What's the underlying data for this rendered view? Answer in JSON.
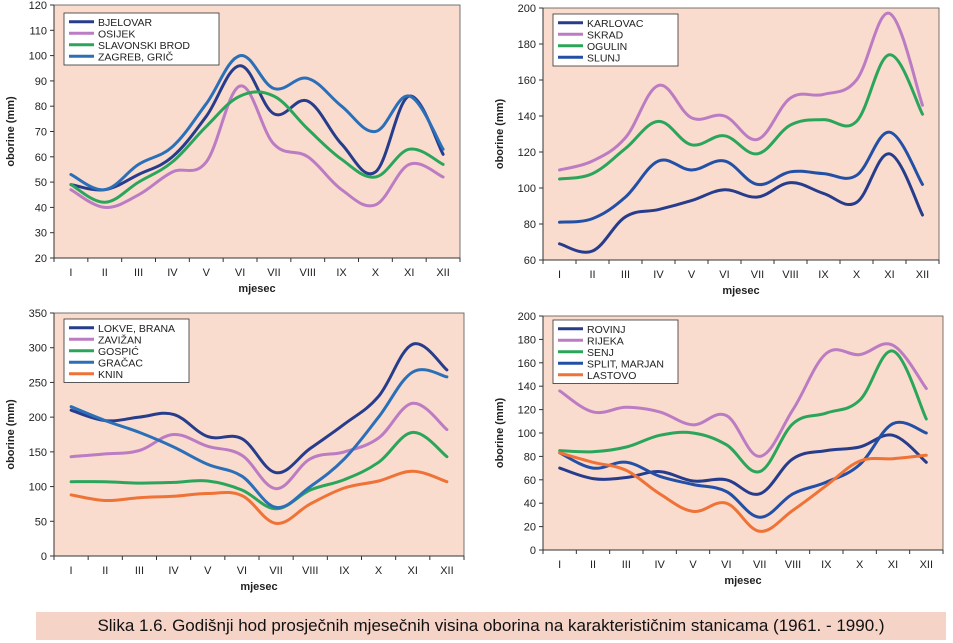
{
  "caption": "Slika 1.6. Godišnji hod prosječnih mjesečnih visina oborina na karakterističnim stanicama (1961. - 1990.)",
  "colors": {
    "plot_bg": "#f9dccd",
    "navy": "#283c8c",
    "violet": "#bb7cc4",
    "green": "#2ca55c",
    "blue": "#2a6fb8",
    "orange": "#ef7236"
  },
  "chart_data": [
    {
      "type": "line",
      "id": "tl",
      "xlabel": "mjesec",
      "ylabel": "oborine (mm)",
      "categories": [
        "I",
        "II",
        "III",
        "IV",
        "V",
        "VI",
        "VII",
        "VIII",
        "IX",
        "X",
        "XI",
        "XII"
      ],
      "ylim": [
        20,
        120
      ],
      "yticks": [
        20,
        30,
        40,
        50,
        60,
        70,
        80,
        90,
        100,
        110,
        120
      ],
      "series": [
        {
          "name": "BJELOVAR",
          "color": "#283c8c",
          "values": [
            49,
            47,
            53,
            60,
            76,
            96,
            77,
            82,
            65,
            54,
            84,
            61
          ]
        },
        {
          "name": "OSIJEK",
          "color": "#bb7cc4",
          "values": [
            47,
            40,
            45,
            54,
            58,
            88,
            65,
            60,
            47,
            41,
            57,
            52
          ]
        },
        {
          "name": "SLAVONSKI BROD",
          "color": "#2ca55c",
          "values": [
            49,
            42,
            50,
            58,
            72,
            84,
            84,
            71,
            59,
            52,
            63,
            57
          ]
        },
        {
          "name": "ZAGREB, GRIČ",
          "color": "#2a6fb8",
          "values": [
            53,
            47,
            57,
            64,
            81,
            100,
            87,
            91,
            80,
            70,
            84,
            63
          ]
        }
      ]
    },
    {
      "type": "line",
      "id": "tr",
      "xlabel": "mjesec",
      "ylabel": "oborine (mm)",
      "categories": [
        "I",
        "II",
        "III",
        "IV",
        "V",
        "VI",
        "VII",
        "VIII",
        "IX",
        "X",
        "XI",
        "XII"
      ],
      "ylim": [
        60,
        200
      ],
      "yticks": [
        60,
        80,
        100,
        120,
        140,
        160,
        180,
        200
      ],
      "series": [
        {
          "name": "KARLOVAC",
          "color": "#283c8c",
          "values": [
            69,
            65,
            84,
            88,
            93,
            99,
            95,
            103,
            97,
            92,
            119,
            85
          ]
        },
        {
          "name": "SKRAD",
          "color": "#bb7cc4",
          "values": [
            110,
            115,
            128,
            157,
            139,
            140,
            127,
            150,
            152,
            160,
            197,
            146
          ]
        },
        {
          "name": "OGULIN",
          "color": "#2ca55c",
          "values": [
            105,
            108,
            122,
            137,
            124,
            129,
            119,
            135,
            138,
            137,
            174,
            141
          ]
        },
        {
          "name": "SLUNJ",
          "color": "#2350a6",
          "values": [
            81,
            83,
            95,
            115,
            110,
            115,
            102,
            109,
            108,
            107,
            131,
            102
          ]
        }
      ]
    },
    {
      "type": "line",
      "id": "bl",
      "xlabel": "mjesec",
      "ylabel": "oborine (mm)",
      "categories": [
        "I",
        "II",
        "III",
        "IV",
        "V",
        "VI",
        "VII",
        "VIII",
        "IX",
        "X",
        "XI",
        "XII"
      ],
      "ylim": [
        0,
        350
      ],
      "yticks": [
        0,
        50,
        100,
        150,
        200,
        250,
        300,
        350
      ],
      "series": [
        {
          "name": "LOKVE, BRANA",
          "color": "#283c8c",
          "values": [
            210,
            195,
            200,
            204,
            172,
            169,
            120,
            155,
            190,
            230,
            305,
            268
          ]
        },
        {
          "name": "ZAVIŽAN",
          "color": "#bb7cc4",
          "values": [
            143,
            147,
            152,
            175,
            158,
            145,
            97,
            140,
            150,
            170,
            220,
            182
          ]
        },
        {
          "name": "GOSPIĆ",
          "color": "#2ca55c",
          "values": [
            107,
            107,
            105,
            106,
            108,
            95,
            68,
            95,
            110,
            135,
            178,
            143
          ]
        },
        {
          "name": "GRAČAC",
          "color": "#2a6fb8",
          "values": [
            215,
            195,
            178,
            157,
            132,
            115,
            70,
            100,
            140,
            200,
            265,
            258
          ]
        },
        {
          "name": "KNIN",
          "color": "#ef7236",
          "values": [
            88,
            80,
            84,
            86,
            90,
            87,
            47,
            75,
            98,
            108,
            122,
            107
          ]
        }
      ]
    },
    {
      "type": "line",
      "id": "br",
      "xlabel": "mjesec",
      "ylabel": "oborine (mm)",
      "categories": [
        "I",
        "II",
        "III",
        "IV",
        "V",
        "VI",
        "VII",
        "VIII",
        "IX",
        "X",
        "XI",
        "XII"
      ],
      "ylim": [
        0,
        200
      ],
      "yticks": [
        0,
        20,
        40,
        60,
        80,
        100,
        120,
        140,
        160,
        180,
        200
      ],
      "series": [
        {
          "name": "ROVINJ",
          "color": "#283c8c",
          "values": [
            70,
            61,
            62,
            67,
            59,
            60,
            48,
            78,
            85,
            88,
            98,
            75
          ]
        },
        {
          "name": "RIJEKA",
          "color": "#bb7cc4",
          "values": [
            136,
            118,
            122,
            118,
            107,
            115,
            80,
            120,
            168,
            167,
            175,
            138
          ]
        },
        {
          "name": "SENJ",
          "color": "#2ca55c",
          "values": [
            85,
            84,
            88,
            98,
            100,
            90,
            67,
            108,
            117,
            128,
            170,
            112
          ]
        },
        {
          "name": "SPLIT, MARJAN",
          "color": "#2350a6",
          "values": [
            83,
            70,
            75,
            63,
            56,
            50,
            28,
            48,
            58,
            73,
            108,
            100
          ]
        },
        {
          "name": "LASTOVO",
          "color": "#ef7236",
          "values": [
            83,
            75,
            68,
            48,
            33,
            40,
            16,
            34,
            55,
            76,
            78,
            81
          ]
        }
      ]
    }
  ]
}
